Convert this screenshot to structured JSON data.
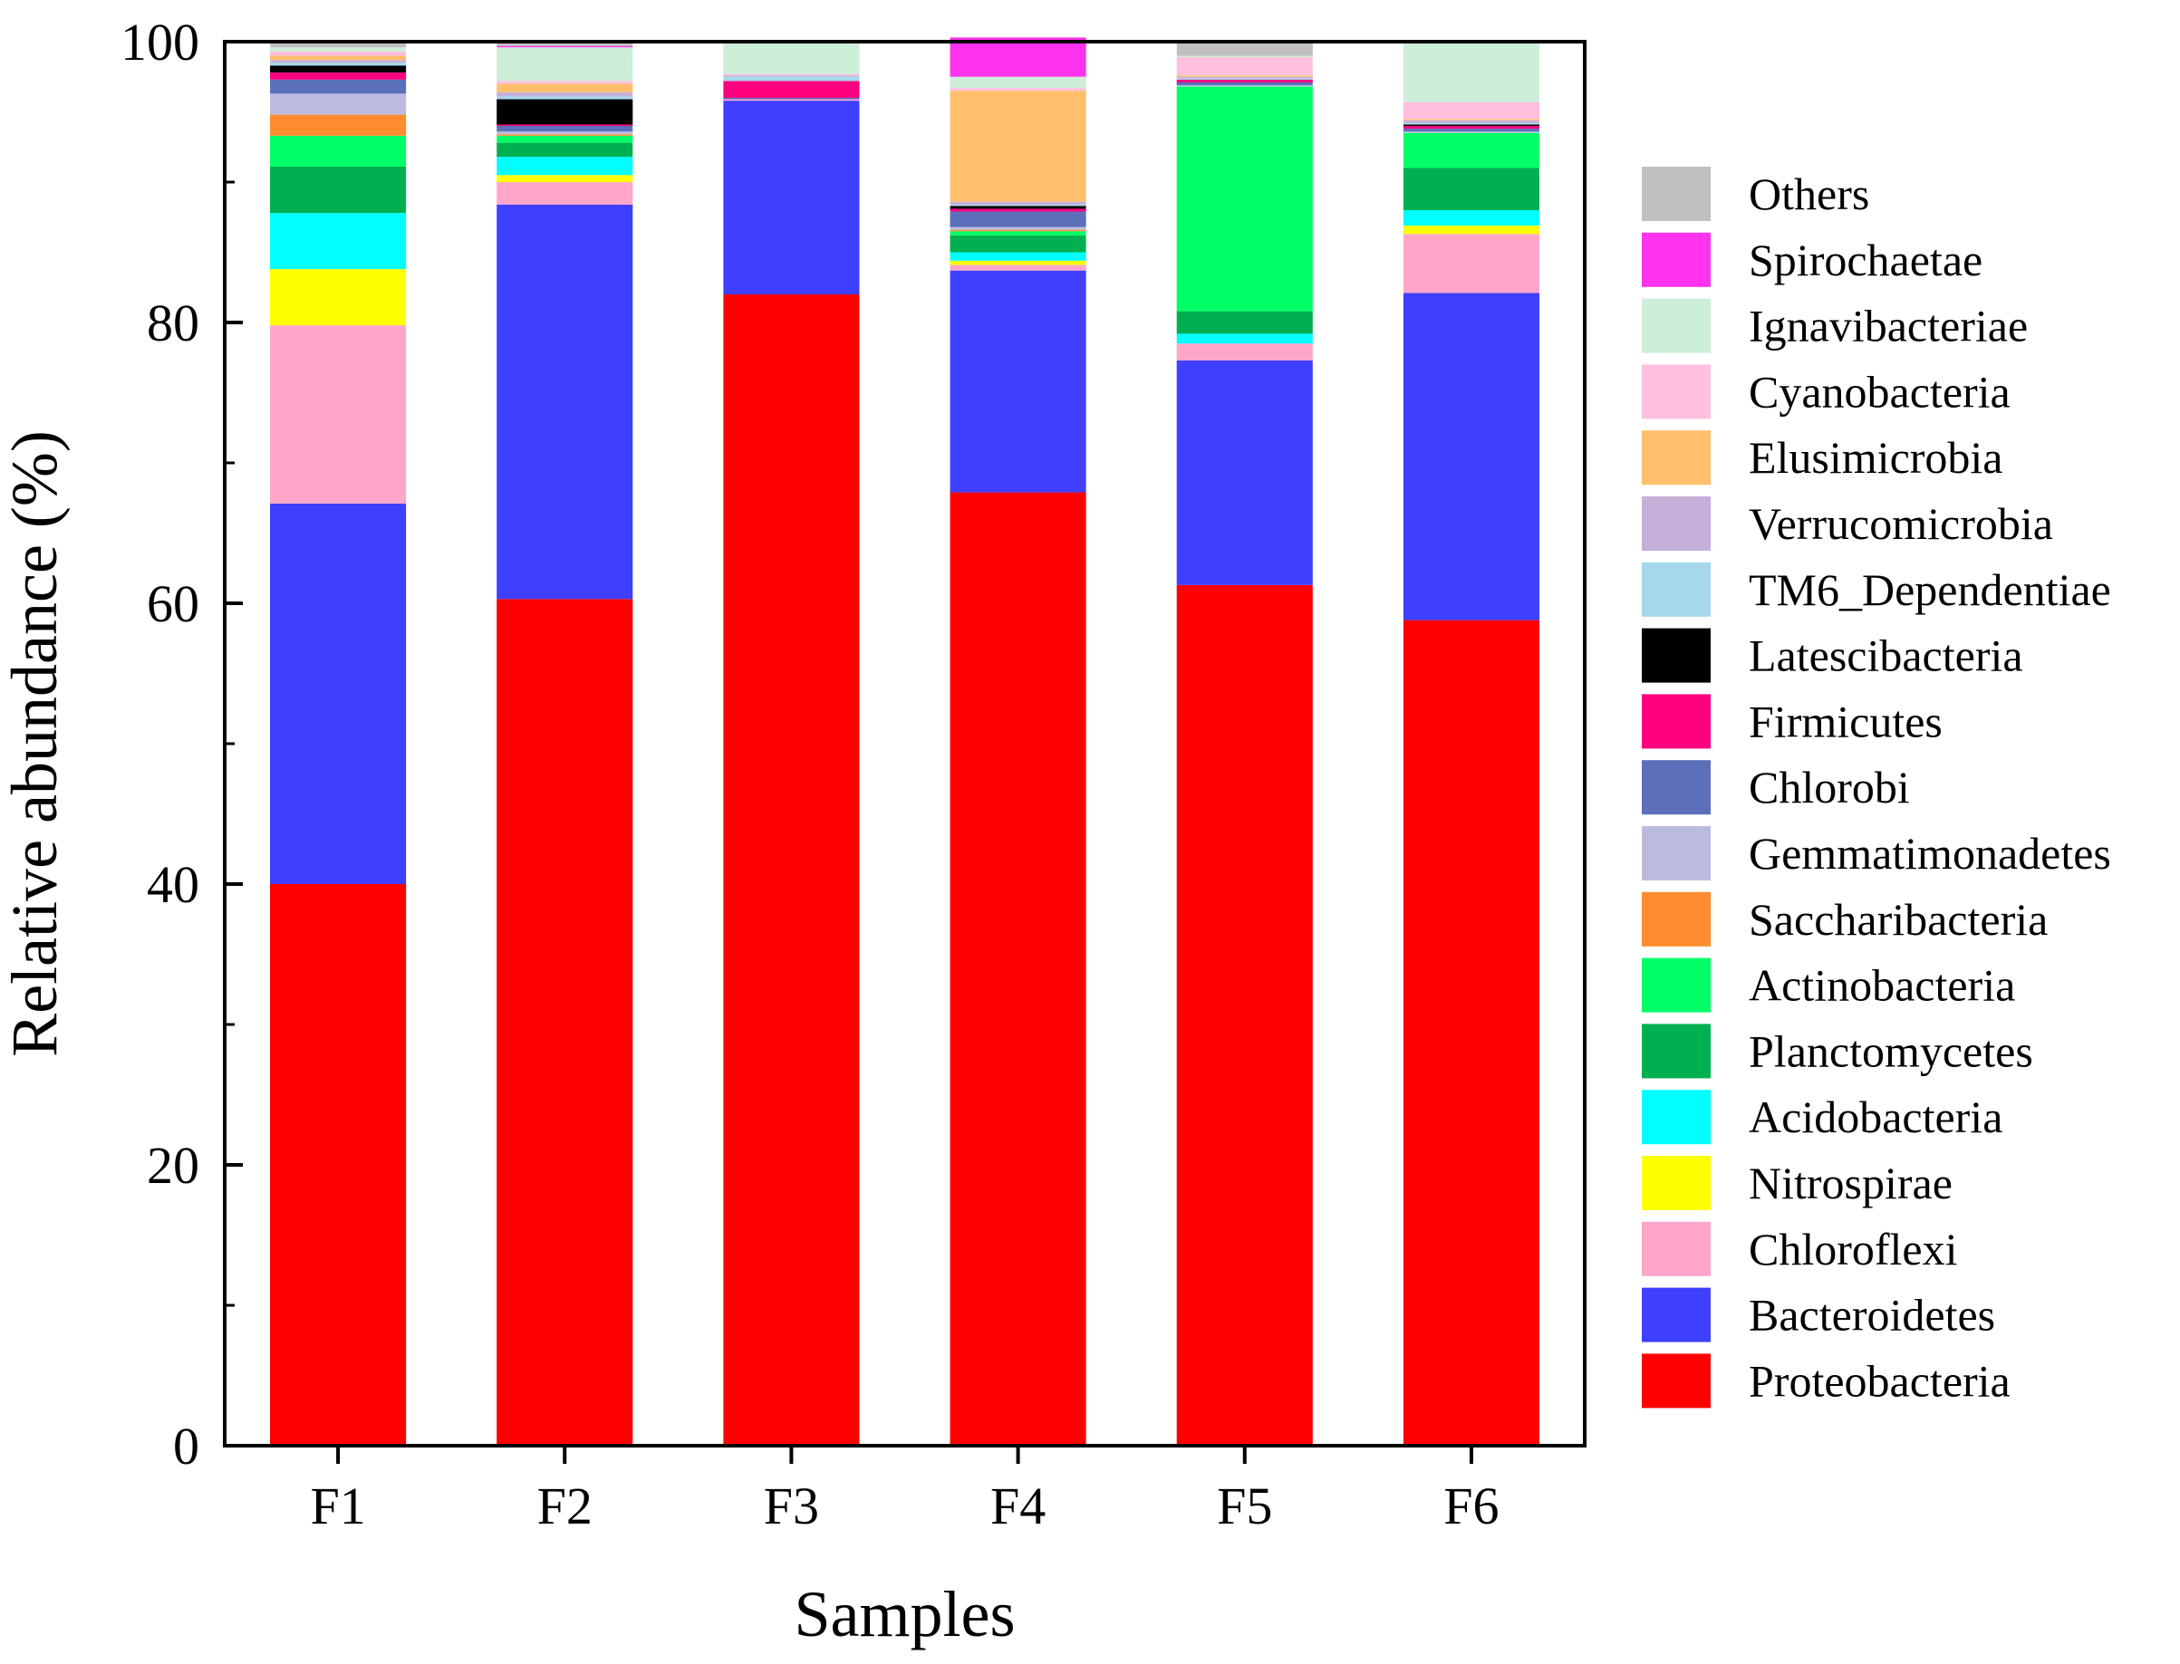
{
  "chart_data": {
    "type": "bar",
    "stacked": true,
    "title": "",
    "xlabel": "Samples",
    "ylabel": "Relative abundance (%)",
    "ylim": [
      0,
      100
    ],
    "yticks": [
      "0",
      "20",
      "40",
      "60",
      "80",
      "100"
    ],
    "legend_position": "right",
    "categories": [
      "F1",
      "F2",
      "F3",
      "F4",
      "F5",
      "F6"
    ],
    "series": [
      {
        "name": "Proteobacteria",
        "color": "#ff0000",
        "values": [
          40.0,
          60.3,
          82.0,
          67.9,
          61.3,
          58.8
        ]
      },
      {
        "name": "Bacteroidetes",
        "color": "#3f3fff",
        "values": [
          27.1,
          28.1,
          13.8,
          15.8,
          16.0,
          23.3
        ]
      },
      {
        "name": "Chloroflexi",
        "color": "#ffa6c9",
        "values": [
          12.7,
          1.6,
          0.1,
          0.4,
          1.2,
          4.2
        ]
      },
      {
        "name": "Nitrospirae",
        "color": "#ffff00",
        "values": [
          4.0,
          0.5,
          0.0,
          0.3,
          0.0,
          0.6
        ]
      },
      {
        "name": "Acidobacteria",
        "color": "#00ffff",
        "values": [
          4.0,
          1.3,
          0.0,
          0.6,
          0.7,
          1.1
        ]
      },
      {
        "name": "Planctomycetes",
        "color": "#00b050",
        "values": [
          3.3,
          1.0,
          0.0,
          1.2,
          1.6,
          3.0
        ]
      },
      {
        "name": "Actinobacteria",
        "color": "#00ff66",
        "values": [
          2.2,
          0.5,
          0.0,
          0.3,
          16.0,
          2.5
        ]
      },
      {
        "name": "Saccharibacteria",
        "color": "#ff8c2e",
        "values": [
          1.5,
          0.1,
          0.0,
          0.1,
          0.0,
          0.0
        ]
      },
      {
        "name": "Gemmatimonadetes",
        "color": "#bbbbdd",
        "values": [
          1.5,
          0.2,
          0.0,
          0.2,
          0.1,
          0.1
        ]
      },
      {
        "name": "Chlorobi",
        "color": "#5b6fba",
        "values": [
          1.0,
          0.4,
          0.1,
          1.1,
          0.2,
          0.2
        ]
      },
      {
        "name": "Firmicutes",
        "color": "#ff0080",
        "values": [
          0.5,
          0.1,
          1.2,
          0.2,
          0.2,
          0.2
        ]
      },
      {
        "name": "Latescibacteria",
        "color": "#000000",
        "values": [
          0.5,
          1.8,
          0.0,
          0.2,
          0.0,
          0.1
        ]
      },
      {
        "name": "TM6_Dependentiae",
        "color": "#a6d8eb",
        "values": [
          0.2,
          0.2,
          0.3,
          0.1,
          0.1,
          0.1
        ]
      },
      {
        "name": "Verrucomicrobia",
        "color": "#c5b0d9",
        "values": [
          0.2,
          0.3,
          0.1,
          0.2,
          0.1,
          0.2
        ]
      },
      {
        "name": "Elusimicrobia",
        "color": "#ffbf6b",
        "values": [
          0.3,
          0.6,
          0.0,
          7.9,
          0.1,
          0.1
        ]
      },
      {
        "name": "Cyanobacteria",
        "color": "#ffc0de",
        "values": [
          0.3,
          0.2,
          0.1,
          0.2,
          1.3,
          1.2
        ]
      },
      {
        "name": "Ignavibacteriae",
        "color": "#cdeed8",
        "values": [
          0.3,
          2.4,
          2.3,
          0.8,
          0.1,
          4.2
        ]
      },
      {
        "name": "Spirochaetae",
        "color": "#ff33ee",
        "values": [
          0.0,
          0.1,
          0.0,
          2.8,
          0.0,
          0.0
        ]
      },
      {
        "name": "Others",
        "color": "#c0c0c0",
        "values": [
          0.4,
          0.3,
          0.0,
          0.0,
          1.0,
          0.1
        ]
      }
    ]
  }
}
